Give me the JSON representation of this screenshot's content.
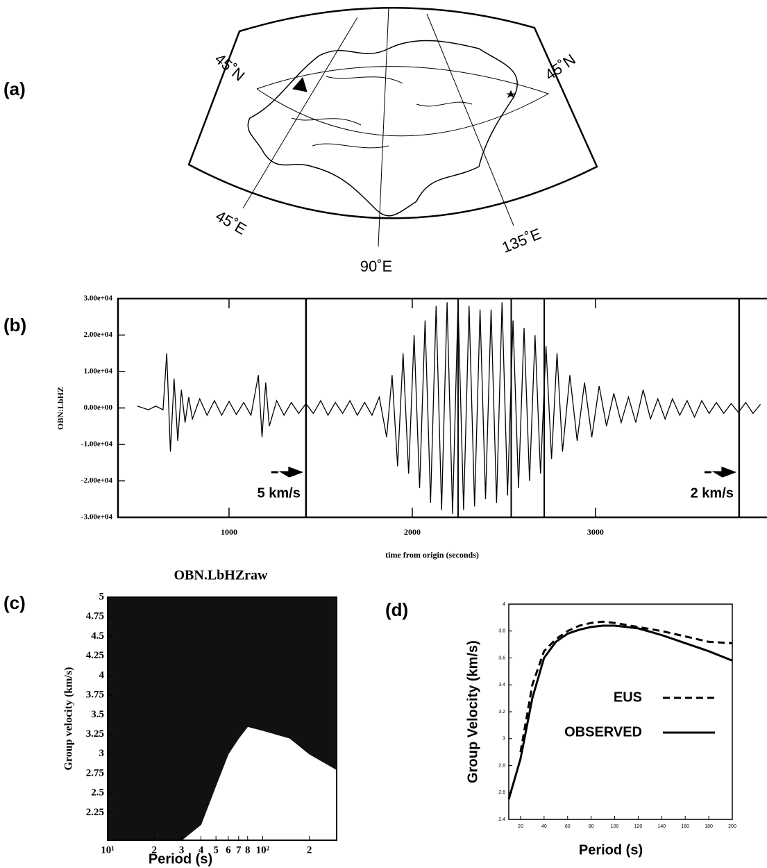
{
  "panel_labels": [
    "(a)",
    "(b)",
    "(c)",
    "(d)"
  ],
  "map": {
    "labels": [
      "45˚N",
      "45˚N",
      "45˚E",
      "90˚E",
      "135˚E"
    ]
  },
  "chart_data": [
    {
      "type": "line",
      "y_label": "OBN:LbHZ",
      "x_label": "time from origin (seconds)",
      "xlim": [
        394,
        3936
      ],
      "xticks": [
        1000,
        2000,
        3000
      ],
      "ylim": [
        -30000,
        30000
      ],
      "yticks": [
        {
          "value": -30000,
          "label": "-3.00e+04"
        },
        {
          "value": -20000,
          "label": "-2.00e+04"
        },
        {
          "value": -10000,
          "label": "-1.00e+04"
        },
        {
          "value": 0,
          "label": "0.00e+00"
        },
        {
          "value": 10000,
          "label": "1.00e+04"
        },
        {
          "value": 20000,
          "label": "2.00e+04"
        },
        {
          "value": 30000,
          "label": "3.00e+04"
        }
      ],
      "color": "#000000",
      "x": [
        500,
        560,
        600,
        640,
        660,
        680,
        700,
        720,
        740,
        760,
        780,
        800,
        840,
        880,
        920,
        960,
        1000,
        1040,
        1080,
        1120,
        1160,
        1180,
        1200,
        1220,
        1260,
        1300,
        1340,
        1380,
        1420,
        1460,
        1500,
        1540,
        1580,
        1620,
        1660,
        1700,
        1740,
        1780,
        1820,
        1860,
        1890,
        1920,
        1950,
        1980,
        2010,
        2040,
        2070,
        2100,
        2130,
        2160,
        2190,
        2220,
        2250,
        2280,
        2310,
        2340,
        2370,
        2400,
        2430,
        2460,
        2490,
        2520,
        2550,
        2580,
        2610,
        2640,
        2670,
        2700,
        2730,
        2760,
        2790,
        2820,
        2860,
        2900,
        2940,
        2980,
        3020,
        3060,
        3100,
        3140,
        3180,
        3220,
        3260,
        3300,
        3340,
        3380,
        3420,
        3460,
        3500,
        3540,
        3580,
        3620,
        3660,
        3700,
        3740,
        3780,
        3820,
        3860,
        3900
      ],
      "values": [
        500,
        -500,
        500,
        -500,
        15000,
        -12000,
        8000,
        -9000,
        5000,
        -4000,
        3000,
        -3000,
        2500,
        -2000,
        2000,
        -2000,
        1800,
        -1800,
        1500,
        -2000,
        9000,
        -8000,
        7000,
        -5000,
        2000,
        -2000,
        1500,
        -1500,
        1200,
        -1500,
        2000,
        -2000,
        1500,
        -1500,
        2000,
        -2000,
        1500,
        -2000,
        3000,
        -8000,
        9000,
        -16000,
        15000,
        -18000,
        20000,
        -22000,
        24000,
        -26000,
        28000,
        -28000,
        29000,
        -29000,
        29000,
        -28000,
        28000,
        -27000,
        27000,
        -25000,
        27000,
        -26000,
        29000,
        -24000,
        24000,
        -22000,
        22000,
        -20000,
        20000,
        -18000,
        17000,
        -14000,
        15000,
        -12000,
        9000,
        -9000,
        7000,
        -8000,
        6000,
        -5000,
        4000,
        -4000,
        3000,
        -4000,
        5000,
        -3000,
        2500,
        -3000,
        2500,
        -2000,
        2000,
        -2500,
        2000,
        -1500,
        1500,
        -1500,
        1200,
        -1200,
        1500,
        -1500,
        1000
      ],
      "markers": [
        {
          "x": 1420,
          "label": "5 km/s"
        },
        {
          "x": 3784,
          "label": "2 km/s"
        }
      ],
      "vlines": [
        2250,
        2540,
        2720
      ]
    },
    {
      "type": "area",
      "title": "OBN.LbHZraw",
      "x_label": "Period (s)",
      "y_label": "Group velocity (km/s)",
      "log_x": true,
      "xlim": [
        10,
        300
      ],
      "xticks": [
        {
          "value": 10,
          "label": "10¹"
        },
        {
          "value": 20,
          "label": "2"
        },
        {
          "value": 30,
          "label": "3"
        },
        {
          "value": 40,
          "label": "4"
        },
        {
          "value": 50,
          "label": "5"
        },
        {
          "value": 60,
          "label": "6"
        },
        {
          "value": 70,
          "label": "7"
        },
        {
          "value": 80,
          "label": "8"
        },
        {
          "value": 100,
          "label": "10²"
        },
        {
          "value": 200,
          "label": "2"
        }
      ],
      "ylim": [
        1.9,
        5
      ],
      "yticks": [
        2.25,
        2.5,
        2.75,
        3,
        3.25,
        3.5,
        3.75,
        4,
        4.25,
        4.5,
        4.75,
        5
      ],
      "color": "#111111",
      "x": [
        10,
        20,
        30,
        40,
        50,
        60,
        70,
        80,
        100,
        150,
        200,
        300
      ],
      "values": [
        1.9,
        1.9,
        1.9,
        2.1,
        2.6,
        3.0,
        3.2,
        3.35,
        3.3,
        3.2,
        3.0,
        2.8
      ]
    },
    {
      "type": "line",
      "x_label": "Period (s)",
      "y_label": "Group Velocity (km/s)",
      "xlim": [
        10,
        200
      ],
      "xticks": [
        20,
        40,
        60,
        80,
        100,
        120,
        140,
        160,
        180,
        200
      ],
      "ylim": [
        2.4,
        4
      ],
      "yticks": [
        2.4,
        2.6,
        2.8,
        3,
        3.2,
        3.4,
        3.6,
        3.8,
        4
      ],
      "x": [
        10,
        20,
        30,
        40,
        50,
        60,
        70,
        80,
        90,
        100,
        120,
        140,
        160,
        180,
        200
      ],
      "series": [
        {
          "name": "EUS",
          "color": "#000000",
          "dash": true,
          "values": [
            null,
            2.9,
            3.4,
            3.65,
            3.74,
            3.8,
            3.84,
            3.86,
            3.87,
            3.86,
            3.83,
            3.8,
            3.76,
            3.72,
            3.71
          ]
        },
        {
          "name": "OBSERVED",
          "color": "#000000",
          "dash": false,
          "values": [
            2.55,
            2.85,
            3.3,
            3.6,
            3.72,
            3.78,
            3.81,
            3.83,
            3.84,
            3.84,
            3.82,
            3.77,
            3.71,
            3.65,
            3.58
          ]
        }
      ]
    }
  ]
}
